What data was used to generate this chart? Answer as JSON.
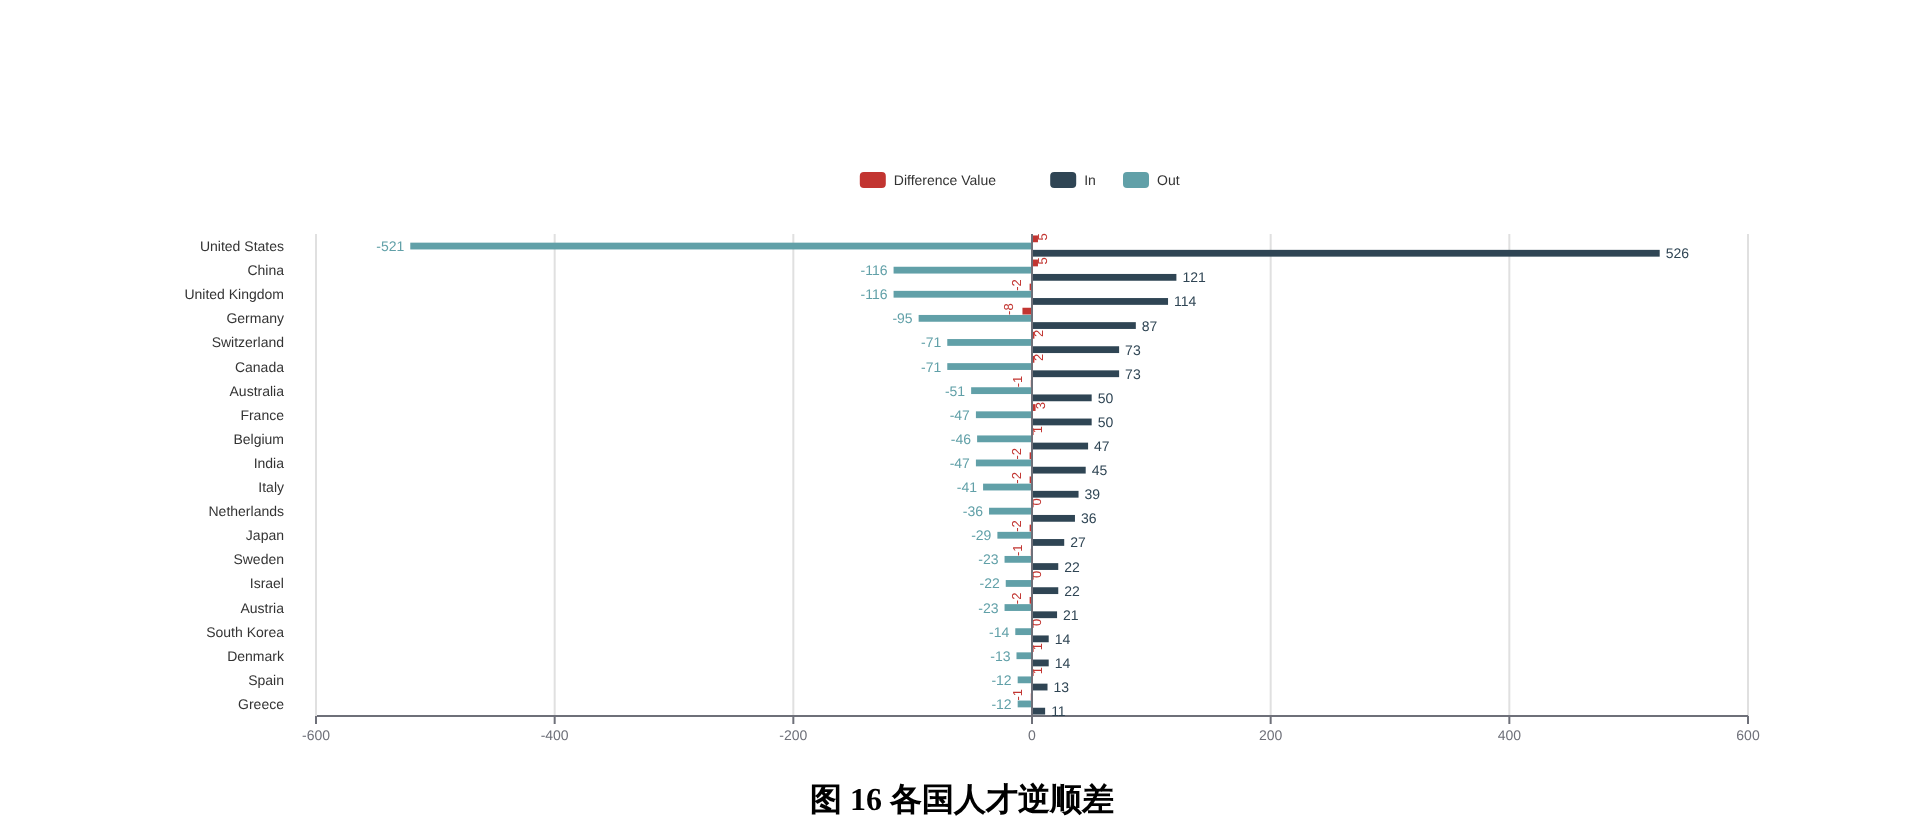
{
  "chart_data": {
    "type": "bar",
    "orientation": "horizontal",
    "title": "图 16 各国人才逆顺差",
    "categories": [
      "United States",
      "China",
      "United Kingdom",
      "Germany",
      "Switzerland",
      "Canada",
      "Australia",
      "France",
      "Belgium",
      "India",
      "Italy",
      "Netherlands",
      "Japan",
      "Sweden",
      "Israel",
      "Austria",
      "South Korea",
      "Denmark",
      "Spain",
      "Greece"
    ],
    "series": [
      {
        "name": "Difference Value",
        "color": "#c23531",
        "values": [
          5,
          5,
          -2,
          -8,
          2,
          2,
          -1,
          3,
          1,
          -2,
          -2,
          0,
          -2,
          -1,
          0,
          -2,
          0,
          1,
          1,
          -1
        ]
      },
      {
        "name": "In",
        "color": "#2f4554",
        "values": [
          526,
          121,
          114,
          87,
          73,
          73,
          50,
          50,
          47,
          45,
          39,
          36,
          27,
          22,
          22,
          21,
          14,
          14,
          13,
          11
        ]
      },
      {
        "name": "Out",
        "color": "#61a0a8",
        "values": [
          -521,
          -116,
          -116,
          -95,
          -71,
          -71,
          -51,
          -47,
          -46,
          -47,
          -41,
          -36,
          -29,
          -23,
          -22,
          -23,
          -14,
          -13,
          -12,
          -12
        ]
      }
    ],
    "xlim": [
      -600,
      600
    ],
    "xticks": [
      -600,
      -400,
      -200,
      0,
      200,
      400,
      600
    ],
    "grid": "x",
    "legend": "top",
    "data_labels": true
  }
}
